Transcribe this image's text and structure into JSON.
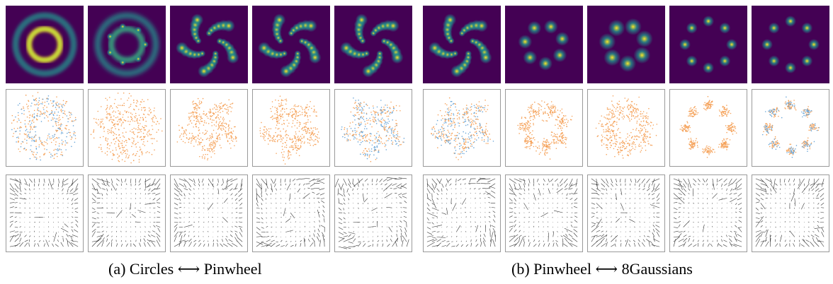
{
  "captions": {
    "a": "(a) Circles ⟷ Pinwheel",
    "b": "(b) Pinwheel ⟷ 8Gaussians"
  },
  "rows": [
    "density",
    "samples",
    "vector-field"
  ],
  "groups": [
    {
      "name": "circles-to-pinwheel",
      "frames": [
        {
          "shape": "rings"
        },
        {
          "shape": "rings-blobby"
        },
        {
          "shape": "pinwheel-forming"
        },
        {
          "shape": "pinwheel"
        },
        {
          "shape": "pinwheel"
        }
      ]
    },
    {
      "name": "pinwheel-to-8gaussians",
      "frames": [
        {
          "shape": "pinwheel"
        },
        {
          "shape": "pinwheel-ring"
        },
        {
          "shape": "blob-ring"
        },
        {
          "shape": "gaussians"
        },
        {
          "shape": "gaussians"
        }
      ]
    }
  ],
  "colors": {
    "density_bg": "#440154",
    "density_mid": "#21918c",
    "density_hi": "#fde725",
    "samples_orange": "#f5a25a",
    "samples_blue": "#6aa6d8",
    "arrow": "#333333"
  }
}
